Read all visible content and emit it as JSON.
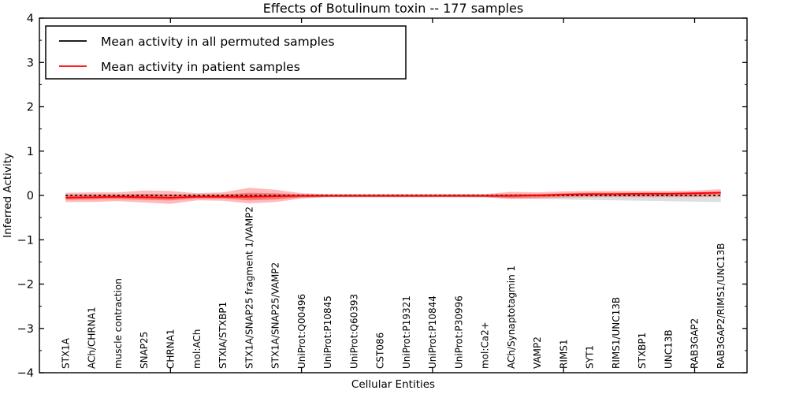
{
  "figure": {
    "background": "#ffffff"
  },
  "chart_data": {
    "type": "line",
    "title": "Effects of Botulinum toxin -- 177 samples",
    "xlabel": "Cellular Entities",
    "ylabel": "Inferred Activity",
    "ylim": [
      -4,
      4
    ],
    "yticks": [
      -4,
      -3,
      -2,
      -1,
      0,
      1,
      2,
      3,
      4
    ],
    "xticks": [
      5,
      10,
      15,
      20,
      25
    ],
    "grid": false,
    "legend_position": "upper left",
    "categories": [
      "STX1A",
      "ACh/CHRNA1",
      "muscle contraction",
      "SNAP25",
      "CHRNA1",
      "mol:ACh",
      "STXIA/STXBP1",
      "STX1A/SNAP25 fragment 1/VAMP2",
      "STX1A/SNAP25/VAMP2",
      "UniProt:Q00496",
      "UniProt:P10845",
      "UniProt:Q60393",
      "CST086",
      "UniProt:P19321",
      "UniProt:P10844",
      "UniProt:P30996",
      "mol:Ca2+",
      "ACh/Synaptotagmin 1",
      "VAMP2",
      "RIMS1",
      "SYT1",
      "RIMS1/UNC13B",
      "STXBP1",
      "UNC13B",
      "RAB3GAP2",
      "RAB3GAP2/RIMS1/UNC13B"
    ],
    "series": [
      {
        "name": "Mean activity in all permuted samples",
        "color": "#000000",
        "line_style": "dashed",
        "values": [
          0,
          0,
          0,
          0,
          0,
          0,
          0,
          0,
          0,
          0,
          0,
          0,
          0,
          0,
          0,
          0,
          0,
          0,
          0,
          0,
          0,
          0,
          0,
          0,
          0,
          0
        ]
      },
      {
        "name": "Mean activity in patient samples",
        "color": "#ff0000",
        "line_style": "solid",
        "values": [
          -0.05,
          -0.04,
          -0.03,
          -0.04,
          -0.05,
          -0.03,
          -0.03,
          -0.03,
          -0.02,
          -0.01,
          -0.01,
          -0.01,
          -0.01,
          -0.01,
          -0.01,
          -0.01,
          -0.01,
          -0.01,
          0,
          0.02,
          0.03,
          0.03,
          0.04,
          0.04,
          0.05,
          0.06
        ]
      }
    ],
    "bands": [
      {
        "name": "permuted-samples-spread",
        "color": "#000000",
        "opacity": 0.13,
        "hi": [
          0.03,
          0.03,
          0.03,
          0.03,
          0.03,
          0.03,
          0.03,
          0.03,
          0.03,
          0.03,
          0.03,
          0.03,
          0.03,
          0.03,
          0.03,
          0.03,
          0.03,
          0.03,
          0.03,
          0.03,
          0.03,
          0.03,
          0.03,
          0.03,
          0.03,
          0.03
        ],
        "lo": [
          -0.07,
          -0.07,
          -0.06,
          -0.07,
          -0.08,
          -0.06,
          -0.06,
          -0.08,
          -0.07,
          -0.05,
          -0.04,
          -0.04,
          -0.04,
          -0.04,
          -0.04,
          -0.04,
          -0.05,
          -0.07,
          -0.08,
          -0.09,
          -0.1,
          -0.11,
          -0.12,
          -0.13,
          -0.14,
          -0.15
        ]
      },
      {
        "name": "patient-samples-spread-outer",
        "color": "#ff1e1e",
        "opacity": 0.3,
        "hi": [
          0.06,
          0.07,
          0.07,
          0.11,
          0.1,
          0.05,
          0.07,
          0.17,
          0.13,
          0.05,
          0.03,
          0.03,
          0.03,
          0.03,
          0.03,
          0.03,
          0.03,
          0.08,
          0.07,
          0.09,
          0.1,
          0.1,
          0.1,
          0.1,
          0.11,
          0.14
        ],
        "lo": [
          -0.15,
          -0.15,
          -0.13,
          -0.16,
          -0.19,
          -0.11,
          -0.12,
          -0.18,
          -0.15,
          -0.07,
          -0.04,
          -0.04,
          -0.04,
          -0.04,
          -0.04,
          -0.04,
          -0.04,
          -0.08,
          -0.07,
          -0.05,
          -0.04,
          -0.04,
          -0.04,
          -0.04,
          -0.04,
          -0.03
        ],
        "values_describe": "upper/lower spread of patient samples around the mean"
      },
      {
        "name": "patient-samples-spread-inner",
        "color": "#ff1e1e",
        "opacity": 0.38,
        "hi": [
          0.0,
          0.01,
          0.01,
          0.03,
          0.02,
          0.01,
          0.02,
          0.06,
          0.05,
          0.02,
          0.01,
          0.01,
          0.01,
          0.01,
          0.01,
          0.01,
          0.01,
          0.03,
          0.03,
          0.05,
          0.06,
          0.06,
          0.06,
          0.06,
          0.07,
          0.09
        ],
        "lo": [
          -0.1,
          -0.09,
          -0.08,
          -0.1,
          -0.11,
          -0.07,
          -0.07,
          -0.11,
          -0.09,
          -0.04,
          -0.03,
          -0.03,
          -0.03,
          -0.03,
          -0.03,
          -0.03,
          -0.03,
          -0.05,
          -0.04,
          -0.02,
          -0.01,
          -0.01,
          -0.01,
          -0.01,
          -0.01,
          0.03
        ]
      }
    ]
  }
}
